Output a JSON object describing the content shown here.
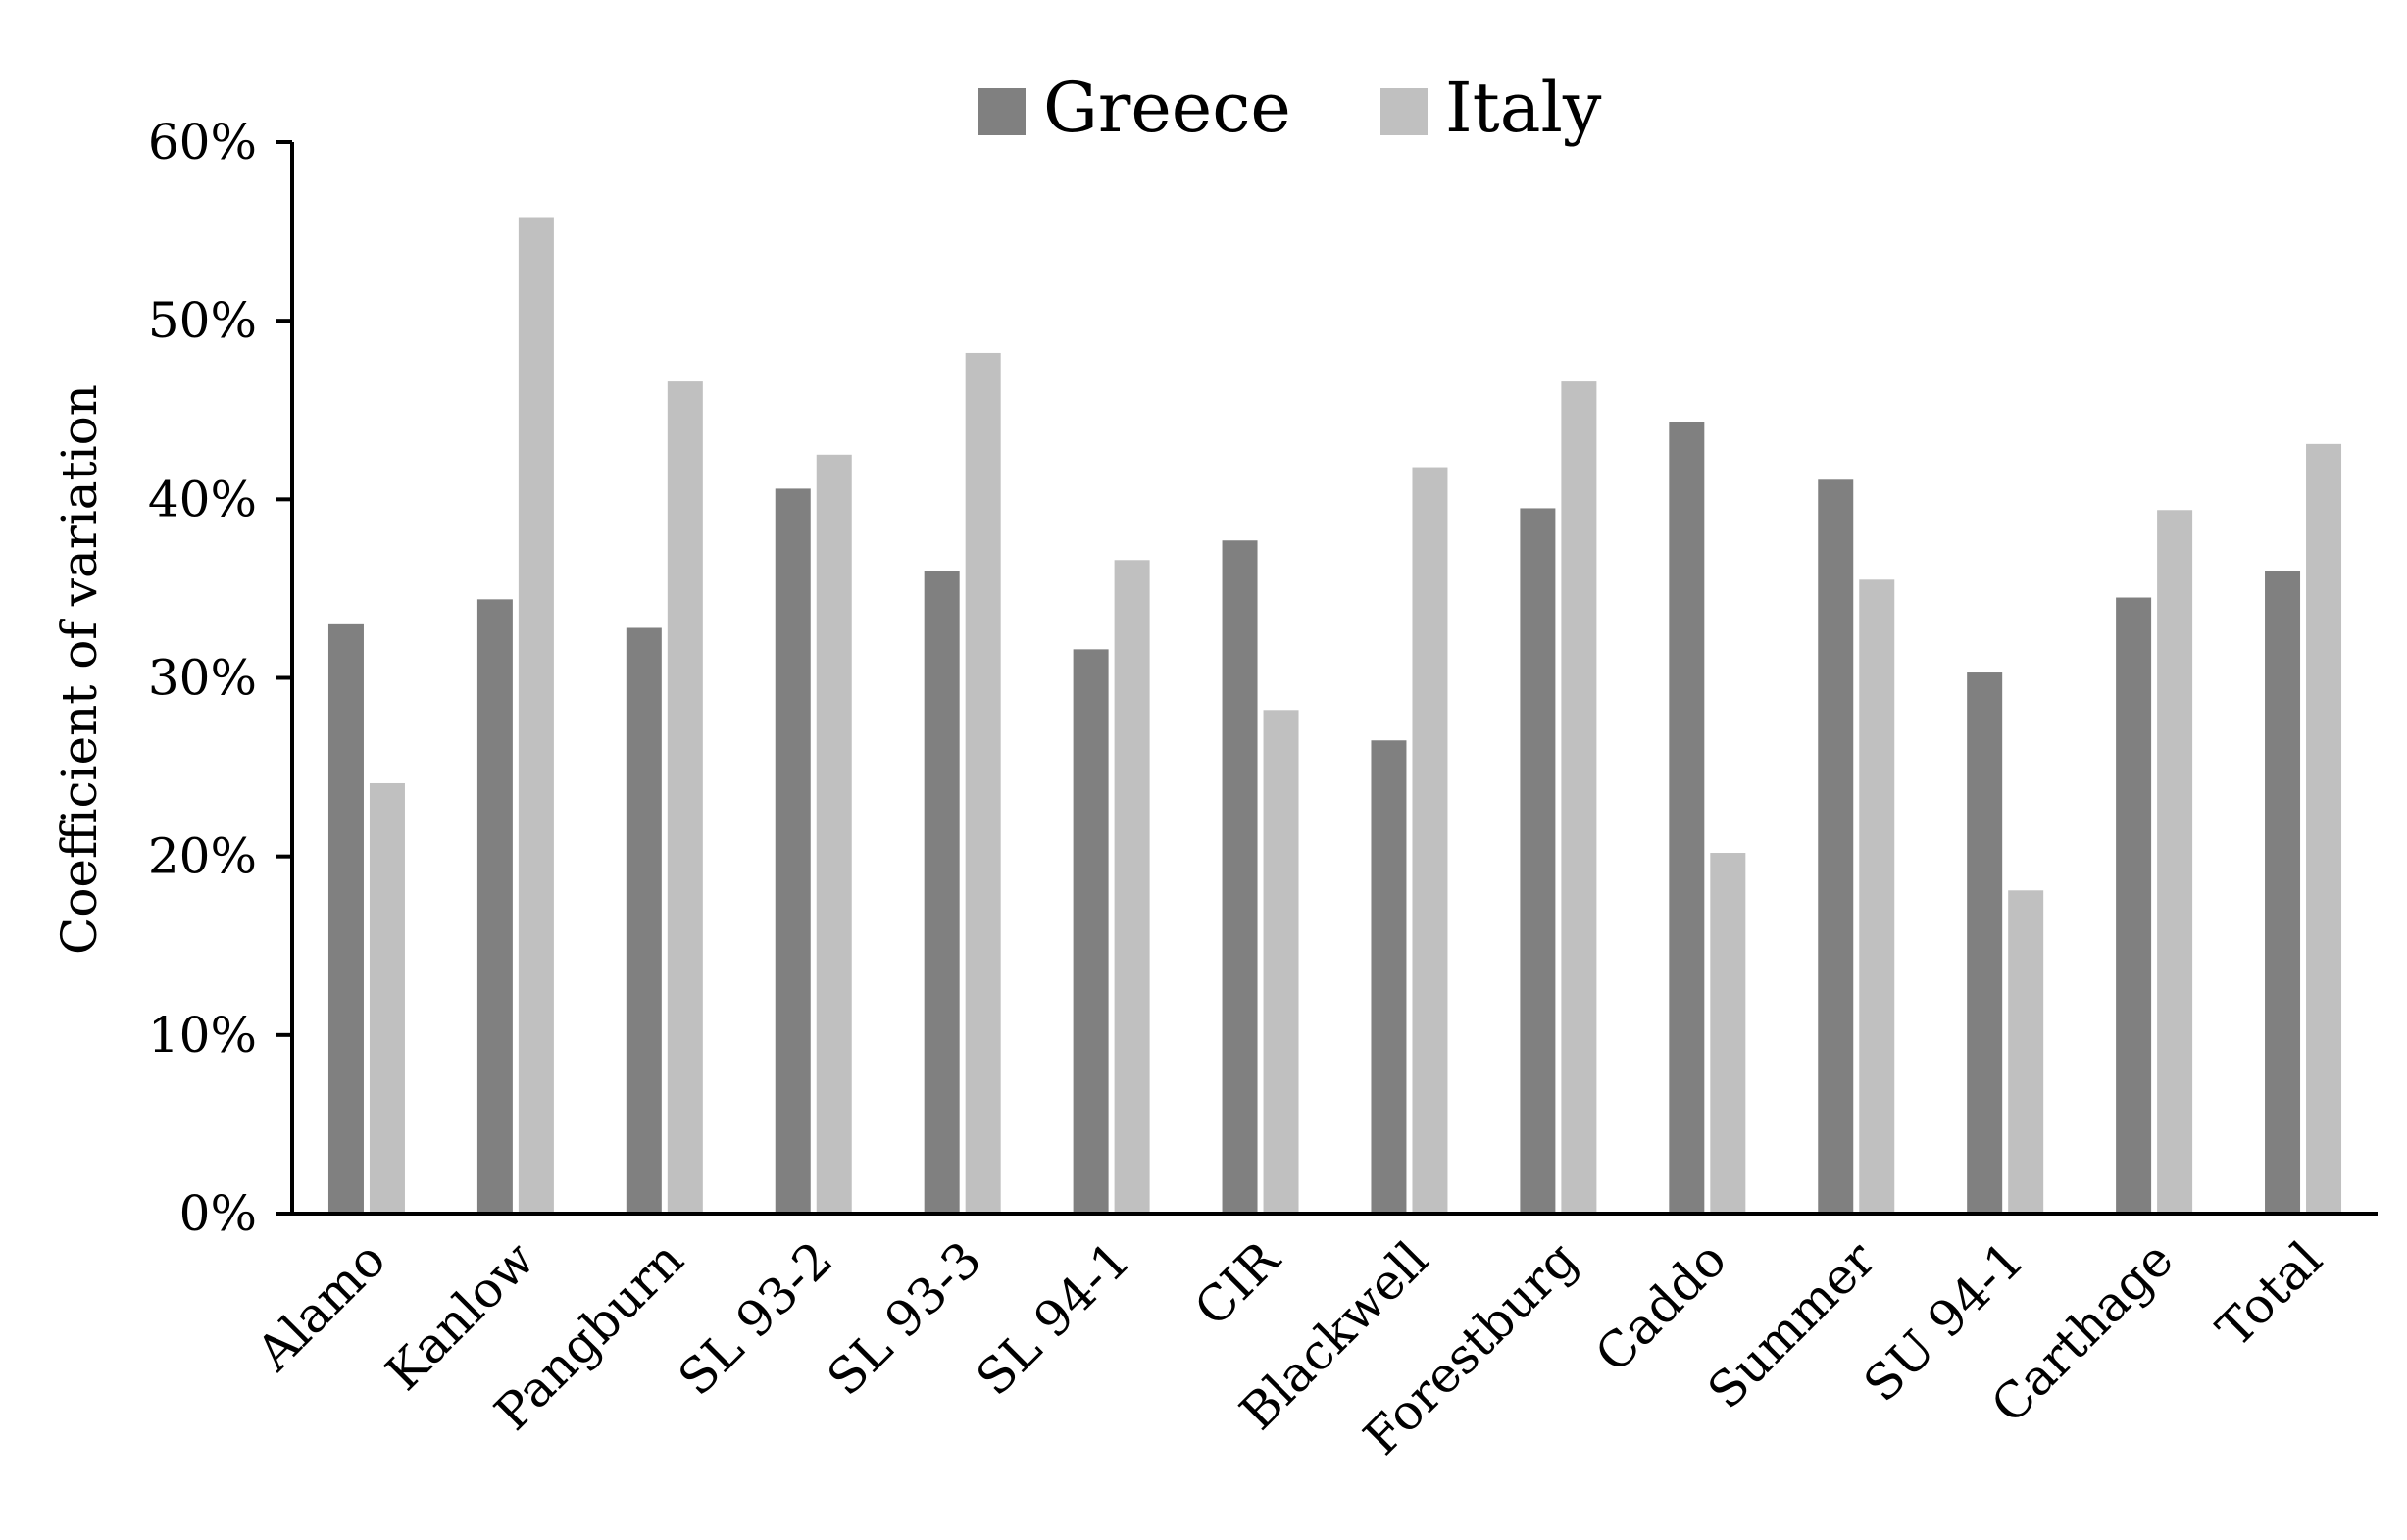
{
  "chart_data": {
    "type": "bar",
    "title": "",
    "xlabel": "",
    "ylabel": "Coefficient of variation",
    "ylim": [
      0,
      60
    ],
    "yticks": [
      "0%",
      "10%",
      "20%",
      "30%",
      "40%",
      "50%",
      "60%"
    ],
    "grid": false,
    "legend_position": "top",
    "categories": [
      "Alamo",
      "Kanlow",
      "Pangburn",
      "SL 93-2",
      "SL 93-3",
      "SL 94-1",
      "CIR",
      "Blackwell",
      "Forestburg",
      "Caddo",
      "Summer",
      "SU 94-1",
      "Carthage",
      "Total"
    ],
    "series": [
      {
        "name": "Greece",
        "color": "#808080",
        "values": [
          33.0,
          34.4,
          32.8,
          40.6,
          36.0,
          31.6,
          37.7,
          26.5,
          39.5,
          44.3,
          41.1,
          30.3,
          34.5,
          36.0
        ]
      },
      {
        "name": "Italy",
        "color": "#c0c0c0",
        "values": [
          24.1,
          55.8,
          46.6,
          42.5,
          48.2,
          36.6,
          28.2,
          41.8,
          46.6,
          20.2,
          35.5,
          18.1,
          39.4,
          43.1
        ]
      }
    ]
  }
}
